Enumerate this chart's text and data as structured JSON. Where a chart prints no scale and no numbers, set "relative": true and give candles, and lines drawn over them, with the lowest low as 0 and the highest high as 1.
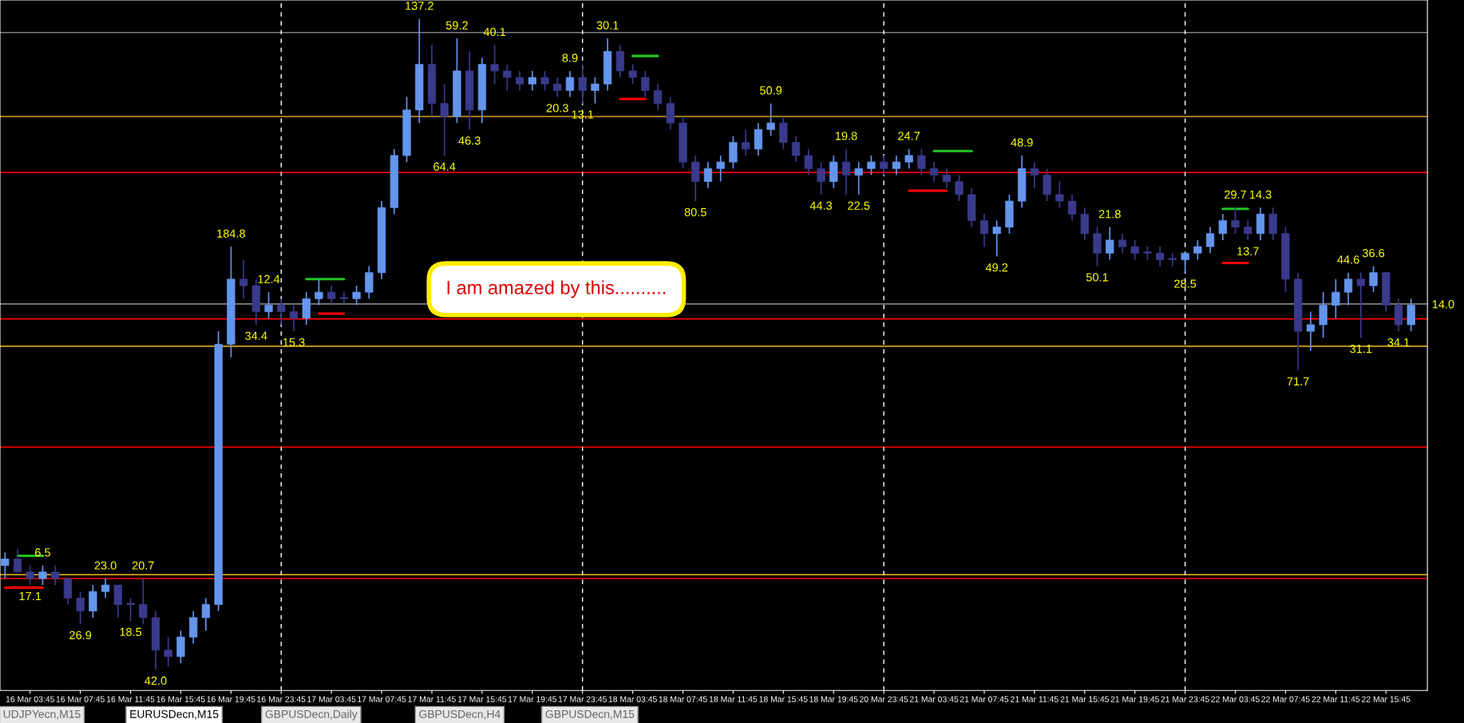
{
  "chart_data": {
    "type": "candlestick",
    "relative": true,
    "grid": false,
    "categories": [
      null,
      null,
      "16 Mar 03:45",
      null,
      null,
      null,
      "16 Mar 07:45",
      null,
      null,
      null,
      "16 Mar 11:45",
      null,
      null,
      null,
      "16 Mar 15:45",
      null,
      null,
      null,
      "16 Mar 19:45",
      null,
      null,
      null,
      "16 Mar 23:45",
      null,
      null,
      null,
      "17 Mar 03:45",
      null,
      null,
      null,
      "17 Mar 07:45",
      null,
      null,
      null,
      "17 Mar 11:45",
      null,
      null,
      null,
      "17 Mar 15:45",
      null,
      null,
      null,
      "17 Mar 19:45",
      null,
      null,
      null,
      "17 Mar 23:45",
      null,
      null,
      null,
      "18 Mar 03:45",
      null,
      null,
      null,
      "18 Mar 07:45",
      null,
      null,
      null,
      "18 Mar 11:45",
      null,
      null,
      null,
      "18 Mar 15:45",
      null,
      null,
      null,
      "18 Mar 19:45",
      null,
      null,
      null,
      "20 Mar 23:45",
      null,
      null,
      null,
      "21 Mar 03:45",
      null,
      null,
      null,
      "21 Mar 07:45",
      null,
      null,
      null,
      "21 Mar 11:45",
      null,
      null,
      null,
      "21 Mar 15:45",
      null,
      null,
      null,
      "21 Mar 19:45",
      null,
      null,
      null,
      "21 Mar 23:45",
      null,
      null,
      null,
      "22 Mar 03:45",
      null,
      null,
      null,
      "22 Mar 07:45",
      null,
      null,
      null,
      "22 Mar 11:45",
      null,
      null,
      null,
      "22 Mar 15:45",
      null,
      null
    ],
    "ohlc": [
      [
        0.16,
        0.18,
        0.14,
        0.17
      ],
      [
        0.17,
        0.185,
        0.15,
        0.15
      ],
      [
        0.15,
        0.16,
        0.13,
        0.14
      ],
      [
        0.14,
        0.16,
        0.13,
        0.15
      ],
      [
        0.15,
        0.16,
        0.13,
        0.14
      ],
      [
        0.14,
        0.14,
        0.1,
        0.11
      ],
      [
        0.11,
        0.12,
        0.07,
        0.09
      ],
      [
        0.09,
        0.13,
        0.08,
        0.12
      ],
      [
        0.12,
        0.14,
        0.11,
        0.13
      ],
      [
        0.13,
        0.13,
        0.08,
        0.1
      ],
      [
        0.1,
        0.11,
        0.075,
        0.1
      ],
      [
        0.1,
        0.14,
        0.07,
        0.08
      ],
      [
        0.08,
        0.09,
        0.0,
        0.03
      ],
      [
        0.03,
        0.05,
        0.005,
        0.02
      ],
      [
        0.02,
        0.06,
        0.01,
        0.05
      ],
      [
        0.05,
        0.09,
        0.04,
        0.08
      ],
      [
        0.08,
        0.11,
        0.06,
        0.1
      ],
      [
        0.1,
        0.52,
        0.09,
        0.5
      ],
      [
        0.5,
        0.65,
        0.48,
        0.6
      ],
      [
        0.6,
        0.63,
        0.57,
        0.59
      ],
      [
        0.59,
        0.6,
        0.53,
        0.55
      ],
      [
        0.55,
        0.58,
        0.54,
        0.56
      ],
      [
        0.56,
        0.57,
        0.53,
        0.55
      ],
      [
        0.55,
        0.56,
        0.52,
        0.54
      ],
      [
        0.54,
        0.58,
        0.53,
        0.57
      ],
      [
        0.57,
        0.6,
        0.56,
        0.58
      ],
      [
        0.58,
        0.59,
        0.56,
        0.57
      ],
      [
        0.57,
        0.58,
        0.56,
        0.57
      ],
      [
        0.57,
        0.59,
        0.56,
        0.58
      ],
      [
        0.58,
        0.62,
        0.57,
        0.61
      ],
      [
        0.61,
        0.72,
        0.6,
        0.71
      ],
      [
        0.71,
        0.8,
        0.7,
        0.79
      ],
      [
        0.79,
        0.88,
        0.78,
        0.86
      ],
      [
        0.86,
        1.0,
        0.84,
        0.93
      ],
      [
        0.93,
        0.96,
        0.85,
        0.87
      ],
      [
        0.87,
        0.9,
        0.79,
        0.85
      ],
      [
        0.85,
        0.97,
        0.84,
        0.92
      ],
      [
        0.92,
        0.95,
        0.83,
        0.86
      ],
      [
        0.86,
        0.94,
        0.84,
        0.93
      ],
      [
        0.93,
        0.96,
        0.9,
        0.92
      ],
      [
        0.92,
        0.93,
        0.89,
        0.91
      ],
      [
        0.91,
        0.92,
        0.89,
        0.9
      ],
      [
        0.9,
        0.92,
        0.89,
        0.91
      ],
      [
        0.91,
        0.92,
        0.89,
        0.9
      ],
      [
        0.9,
        0.91,
        0.88,
        0.89
      ],
      [
        0.89,
        0.92,
        0.88,
        0.91
      ],
      [
        0.91,
        0.93,
        0.87,
        0.89
      ],
      [
        0.89,
        0.91,
        0.87,
        0.9
      ],
      [
        0.9,
        0.97,
        0.89,
        0.95
      ],
      [
        0.95,
        0.96,
        0.91,
        0.92
      ],
      [
        0.92,
        0.93,
        0.9,
        0.91
      ],
      [
        0.91,
        0.92,
        0.88,
        0.89
      ],
      [
        0.89,
        0.9,
        0.86,
        0.87
      ],
      [
        0.87,
        0.88,
        0.83,
        0.84
      ],
      [
        0.84,
        0.85,
        0.77,
        0.78
      ],
      [
        0.78,
        0.79,
        0.72,
        0.75
      ],
      [
        0.75,
        0.78,
        0.74,
        0.77
      ],
      [
        0.77,
        0.79,
        0.75,
        0.78
      ],
      [
        0.78,
        0.82,
        0.77,
        0.81
      ],
      [
        0.81,
        0.83,
        0.79,
        0.8
      ],
      [
        0.8,
        0.84,
        0.79,
        0.83
      ],
      [
        0.83,
        0.87,
        0.82,
        0.84
      ],
      [
        0.84,
        0.85,
        0.8,
        0.81
      ],
      [
        0.81,
        0.82,
        0.78,
        0.79
      ],
      [
        0.79,
        0.8,
        0.76,
        0.77
      ],
      [
        0.77,
        0.78,
        0.73,
        0.75
      ],
      [
        0.75,
        0.79,
        0.74,
        0.78
      ],
      [
        0.78,
        0.8,
        0.73,
        0.76
      ],
      [
        0.76,
        0.78,
        0.73,
        0.77
      ],
      [
        0.77,
        0.79,
        0.76,
        0.78
      ],
      [
        0.78,
        0.79,
        0.76,
        0.77
      ],
      [
        0.77,
        0.79,
        0.76,
        0.78
      ],
      [
        0.78,
        0.8,
        0.77,
        0.79
      ],
      [
        0.79,
        0.8,
        0.76,
        0.77
      ],
      [
        0.77,
        0.78,
        0.75,
        0.76
      ],
      [
        0.76,
        0.77,
        0.74,
        0.75
      ],
      [
        0.75,
        0.76,
        0.72,
        0.73
      ],
      [
        0.73,
        0.74,
        0.68,
        0.69
      ],
      [
        0.69,
        0.7,
        0.65,
        0.67
      ],
      [
        0.67,
        0.69,
        0.635,
        0.68
      ],
      [
        0.68,
        0.73,
        0.67,
        0.72
      ],
      [
        0.72,
        0.79,
        0.71,
        0.77
      ],
      [
        0.77,
        0.78,
        0.74,
        0.76
      ],
      [
        0.76,
        0.77,
        0.72,
        0.73
      ],
      [
        0.73,
        0.75,
        0.71,
        0.72
      ],
      [
        0.72,
        0.73,
        0.69,
        0.7
      ],
      [
        0.7,
        0.71,
        0.66,
        0.67
      ],
      [
        0.67,
        0.68,
        0.62,
        0.64
      ],
      [
        0.64,
        0.68,
        0.63,
        0.66
      ],
      [
        0.66,
        0.67,
        0.64,
        0.65
      ],
      [
        0.65,
        0.66,
        0.63,
        0.64
      ],
      [
        0.64,
        0.65,
        0.63,
        0.64
      ],
      [
        0.64,
        0.65,
        0.62,
        0.63
      ],
      [
        0.63,
        0.64,
        0.62,
        0.63
      ],
      [
        0.63,
        0.64,
        0.61,
        0.64
      ],
      [
        0.64,
        0.66,
        0.63,
        0.65
      ],
      [
        0.65,
        0.68,
        0.64,
        0.67
      ],
      [
        0.67,
        0.7,
        0.66,
        0.69
      ],
      [
        0.69,
        0.71,
        0.67,
        0.68
      ],
      [
        0.68,
        0.69,
        0.66,
        0.67
      ],
      [
        0.67,
        0.71,
        0.66,
        0.7
      ],
      [
        0.7,
        0.71,
        0.66,
        0.67
      ],
      [
        0.67,
        0.68,
        0.58,
        0.6
      ],
      [
        0.6,
        0.61,
        0.46,
        0.52
      ],
      [
        0.52,
        0.55,
        0.49,
        0.53
      ],
      [
        0.53,
        0.58,
        0.51,
        0.56
      ],
      [
        0.56,
        0.6,
        0.54,
        0.58
      ],
      [
        0.58,
        0.61,
        0.56,
        0.6
      ],
      [
        0.6,
        0.61,
        0.51,
        0.59
      ],
      [
        0.59,
        0.62,
        0.58,
        0.61
      ],
      [
        0.61,
        0.61,
        0.55,
        0.56
      ],
      [
        0.56,
        0.57,
        0.52,
        0.53
      ],
      [
        0.53,
        0.57,
        0.52,
        0.56
      ]
    ],
    "colors": [
      "#6495ed",
      "#3a3a8c",
      "#3a3a8c",
      "#6495ed",
      "#3a3a8c",
      "#3a3a8c",
      "#3a3a8c",
      "#6495ed",
      "#6495ed",
      "#3a3a8c",
      "#3a3a8c",
      "#3a3a8c",
      "#3a3a8c",
      "#3a3a8c",
      "#6495ed",
      "#6495ed",
      "#6495ed",
      "#6495ed",
      "#6495ed",
      "#3a3a8c",
      "#3a3a8c",
      "#6495ed",
      "#3a3a8c",
      "#3a3a8c",
      "#6495ed",
      "#6495ed",
      "#3a3a8c",
      "#3a3a8c",
      "#6495ed",
      "#6495ed",
      "#6495ed",
      "#6495ed",
      "#6495ed",
      "#6495ed",
      "#3a3a8c",
      "#3a3a8c",
      "#6495ed",
      "#3a3a8c",
      "#6495ed",
      "#3a3a8c",
      "#3a3a8c",
      "#3a3a8c",
      "#6495ed",
      "#3a3a8c",
      "#3a3a8c",
      "#6495ed",
      "#3a3a8c",
      "#6495ed",
      "#6495ed",
      "#3a3a8c",
      "#3a3a8c",
      "#3a3a8c",
      "#3a3a8c",
      "#3a3a8c",
      "#3a3a8c",
      "#3a3a8c",
      "#6495ed",
      "#6495ed",
      "#6495ed",
      "#3a3a8c",
      "#6495ed",
      "#6495ed",
      "#3a3a8c",
      "#3a3a8c",
      "#3a3a8c",
      "#3a3a8c",
      "#6495ed",
      "#3a3a8c",
      "#6495ed",
      "#6495ed",
      "#3a3a8c",
      "#6495ed",
      "#6495ed",
      "#3a3a8c",
      "#3a3a8c",
      "#3a3a8c",
      "#3a3a8c",
      "#3a3a8c",
      "#3a3a8c",
      "#6495ed",
      "#6495ed",
      "#6495ed",
      "#3a3a8c",
      "#3a3a8c",
      "#3a3a8c",
      "#3a3a8c",
      "#3a3a8c",
      "#3a3a8c",
      "#6495ed",
      "#3a3a8c",
      "#3a3a8c",
      "#3a3a8c",
      "#3a3a8c",
      "#3a3a8c",
      "#6495ed",
      "#6495ed",
      "#6495ed",
      "#6495ed",
      "#3a3a8c",
      "#3a3a8c",
      "#6495ed",
      "#3a3a8c",
      "#3a3a8c",
      "#3a3a8c",
      "#6495ed",
      "#6495ed",
      "#6495ed",
      "#6495ed",
      "#3a3a8c",
      "#6495ed",
      "#3a3a8c",
      "#3a3a8c",
      "#6495ed"
    ],
    "series": [
      {
        "type": "line",
        "color": "#22c522",
        "values": [
          null,
          0.175,
          0.175,
          0.175,
          null,
          null,
          null,
          null,
          null,
          null,
          null,
          null,
          null,
          null,
          null,
          null,
          null,
          null,
          null,
          null,
          null,
          null,
          null,
          null,
          null,
          null,
          null,
          null,
          null,
          null,
          null,
          null,
          null,
          null,
          null,
          null,
          null,
          null,
          null,
          null,
          null,
          null,
          null,
          null,
          null,
          null,
          null,
          null,
          null,
          null,
          null,
          null,
          null,
          null,
          null,
          null,
          null,
          null,
          null,
          null,
          null,
          null,
          null,
          null,
          null,
          null,
          null,
          null,
          null,
          null,
          null,
          null,
          null,
          null,
          null,
          null,
          null,
          null,
          null,
          null,
          null,
          null,
          null,
          null,
          null,
          null,
          null,
          null,
          null,
          null,
          null,
          null,
          null,
          null,
          null,
          null,
          null,
          null,
          null,
          null,
          null,
          null,
          null,
          null,
          null,
          null,
          null,
          null,
          null,
          null,
          null,
          null,
          null
        ]
      },
      {
        "type": "line",
        "color": "#ff0000",
        "values": [
          0.126,
          0.126,
          0.126,
          0.126,
          null,
          null,
          null,
          null,
          null,
          null,
          null,
          null,
          null,
          null,
          null,
          null,
          null,
          null,
          null,
          null,
          null,
          null,
          null,
          null,
          null,
          null,
          null,
          null,
          null,
          null,
          null,
          null,
          null,
          null,
          null,
          null,
          null,
          null,
          null,
          null,
          null,
          null,
          null,
          null,
          null,
          null,
          null,
          null,
          null,
          null,
          null,
          null,
          null,
          null,
          null,
          null,
          null,
          null,
          null,
          null,
          null,
          null,
          null,
          null,
          null,
          null,
          null,
          null,
          null,
          null,
          null,
          null,
          null,
          null,
          null,
          null,
          null,
          null,
          null,
          null,
          null,
          null,
          null,
          null,
          null,
          null,
          null,
          null,
          null,
          null,
          null,
          null,
          null,
          null,
          null,
          null,
          null,
          null,
          null,
          null,
          null,
          null,
          null,
          null,
          null,
          null,
          null,
          null,
          null,
          null,
          null,
          null,
          null
        ]
      },
      {
        "type": "line",
        "color": "#22c522",
        "values": [
          null,
          null,
          null,
          null,
          null,
          null,
          null,
          null,
          null,
          null,
          null,
          null,
          null,
          null,
          null,
          null,
          null,
          null,
          null,
          null,
          null,
          null,
          null,
          null,
          0.6,
          0.6,
          0.6,
          0.6,
          null,
          null,
          null,
          null,
          null,
          null,
          null,
          null,
          null,
          null,
          null,
          null,
          null,
          null,
          null,
          null,
          null,
          null,
          null,
          null,
          null,
          null,
          null,
          null,
          null,
          null,
          null,
          null,
          null,
          null,
          null,
          null,
          null,
          null,
          null,
          null,
          null,
          null,
          null,
          null,
          null,
          null,
          null,
          null,
          null,
          null,
          null,
          null,
          null,
          null,
          null,
          null,
          null,
          null,
          null,
          null,
          null,
          null,
          null,
          null,
          null,
          null,
          null,
          null,
          null,
          null,
          null,
          null,
          null,
          null,
          null,
          null,
          null,
          null,
          null,
          null,
          null,
          null,
          null,
          null,
          null,
          null,
          null,
          null,
          null
        ]
      },
      {
        "type": "line",
        "color": "#ff0000",
        "values": [
          null,
          null,
          null,
          null,
          null,
          null,
          null,
          null,
          null,
          null,
          null,
          null,
          null,
          null,
          null,
          null,
          null,
          null,
          null,
          null,
          null,
          null,
          null,
          null,
          null,
          0.547,
          0.547,
          0.547,
          null,
          null,
          null,
          null,
          null,
          null,
          null,
          null,
          null,
          null,
          null,
          null,
          null,
          null,
          null,
          null,
          null,
          null,
          null,
          null,
          null,
          null,
          null,
          null,
          null,
          null,
          null,
          null,
          null,
          null,
          null,
          null,
          null,
          null,
          null,
          null,
          null,
          null,
          null,
          null,
          null,
          null,
          null,
          null,
          null,
          null,
          null,
          null,
          null,
          null,
          null,
          null,
          null,
          null,
          null,
          null,
          null,
          null,
          null,
          null,
          null,
          null,
          null,
          null,
          null,
          null,
          null,
          null,
          null,
          null,
          null,
          null,
          null,
          null,
          null,
          null,
          null,
          null,
          null,
          null,
          null,
          null,
          null,
          null,
          null
        ]
      },
      {
        "type": "line",
        "color": "#22c522",
        "values": [
          null,
          null,
          null,
          null,
          null,
          null,
          null,
          null,
          null,
          null,
          null,
          null,
          null,
          null,
          null,
          null,
          null,
          null,
          null,
          null,
          null,
          null,
          null,
          null,
          null,
          null,
          null,
          null,
          null,
          null,
          null,
          null,
          null,
          null,
          null,
          null,
          null,
          null,
          null,
          null,
          null,
          null,
          null,
          null,
          null,
          null,
          null,
          null,
          null,
          null,
          0.943,
          0.943,
          0.943,
          null,
          null,
          null,
          null,
          null,
          null,
          null,
          null,
          null,
          null,
          null,
          null,
          null,
          null,
          null,
          null,
          null,
          null,
          null,
          null,
          null,
          null,
          null,
          null,
          null,
          null,
          null,
          null,
          null,
          null,
          null,
          null,
          null,
          null,
          null,
          null,
          null,
          null,
          null,
          null,
          null,
          null,
          null,
          null,
          null,
          null,
          null,
          null,
          null,
          null,
          null,
          null,
          null,
          null,
          null,
          null,
          null,
          null,
          null,
          null
        ]
      },
      {
        "type": "line",
        "color": "#ff0000",
        "values": [
          null,
          null,
          null,
          null,
          null,
          null,
          null,
          null,
          null,
          null,
          null,
          null,
          null,
          null,
          null,
          null,
          null,
          null,
          null,
          null,
          null,
          null,
          null,
          null,
          null,
          null,
          null,
          null,
          null,
          null,
          null,
          null,
          null,
          null,
          null,
          null,
          null,
          null,
          null,
          null,
          null,
          null,
          null,
          null,
          null,
          null,
          null,
          null,
          null,
          0.877,
          0.877,
          0.877,
          null,
          null,
          null,
          null,
          null,
          null,
          null,
          null,
          null,
          null,
          null,
          null,
          null,
          null,
          null,
          null,
          null,
          null,
          null,
          null,
          null,
          null,
          null,
          null,
          null,
          null,
          null,
          null,
          null,
          null,
          null,
          null,
          null,
          null,
          null,
          null,
          null,
          null,
          null,
          null,
          null,
          null,
          null,
          null,
          null,
          null,
          null,
          null,
          null,
          null,
          null,
          null,
          null,
          null,
          null,
          null,
          null,
          null,
          null,
          null,
          null
        ]
      },
      {
        "type": "line",
        "color": "#22c522",
        "values": [
          null,
          null,
          null,
          null,
          null,
          null,
          null,
          null,
          null,
          null,
          null,
          null,
          null,
          null,
          null,
          null,
          null,
          null,
          null,
          null,
          null,
          null,
          null,
          null,
          null,
          null,
          null,
          null,
          null,
          null,
          null,
          null,
          null,
          null,
          null,
          null,
          null,
          null,
          null,
          null,
          null,
          null,
          null,
          null,
          null,
          null,
          null,
          null,
          null,
          null,
          null,
          null,
          null,
          null,
          null,
          null,
          null,
          null,
          null,
          null,
          null,
          null,
          null,
          null,
          null,
          null,
          null,
          null,
          null,
          null,
          null,
          null,
          null,
          null,
          0.797,
          0.797,
          0.797,
          0.797,
          null,
          null,
          null,
          null,
          null,
          null,
          null,
          null,
          null,
          null,
          null,
          null,
          null,
          null,
          null,
          null,
          null,
          null,
          null,
          null,
          null,
          null,
          null,
          null,
          null,
          null,
          null,
          null,
          null,
          null,
          null,
          null,
          null,
          null,
          null
        ]
      },
      {
        "type": "line",
        "color": "#ff0000",
        "values": [
          null,
          null,
          null,
          null,
          null,
          null,
          null,
          null,
          null,
          null,
          null,
          null,
          null,
          null,
          null,
          null,
          null,
          null,
          null,
          null,
          null,
          null,
          null,
          null,
          null,
          null,
          null,
          null,
          null,
          null,
          null,
          null,
          null,
          null,
          null,
          null,
          null,
          null,
          null,
          null,
          null,
          null,
          null,
          null,
          null,
          null,
          null,
          null,
          null,
          null,
          null,
          null,
          null,
          null,
          null,
          null,
          null,
          null,
          null,
          null,
          null,
          null,
          null,
          null,
          null,
          null,
          null,
          null,
          null,
          null,
          null,
          null,
          0.736,
          0.736,
          0.736,
          0.736,
          null,
          null,
          null,
          null,
          null,
          null,
          null,
          null,
          null,
          null,
          null,
          null,
          null,
          null,
          null,
          null,
          null,
          null,
          null,
          null,
          null,
          null,
          null,
          null,
          null,
          null,
          null,
          null,
          null,
          null,
          null,
          null,
          null,
          null,
          null,
          null,
          null
        ]
      },
      {
        "type": "line",
        "color": "#22c522",
        "values": [
          null,
          null,
          null,
          null,
          null,
          null,
          null,
          null,
          null,
          null,
          null,
          null,
          null,
          null,
          null,
          null,
          null,
          null,
          null,
          null,
          null,
          null,
          null,
          null,
          null,
          null,
          null,
          null,
          null,
          null,
          null,
          null,
          null,
          null,
          null,
          null,
          null,
          null,
          null,
          null,
          null,
          null,
          null,
          null,
          null,
          null,
          null,
          null,
          null,
          null,
          null,
          null,
          null,
          null,
          null,
          null,
          null,
          null,
          null,
          null,
          null,
          null,
          null,
          null,
          null,
          null,
          null,
          null,
          null,
          null,
          null,
          null,
          null,
          null,
          null,
          null,
          null,
          null,
          null,
          null,
          null,
          null,
          null,
          null,
          null,
          null,
          null,
          null,
          null,
          null,
          null,
          null,
          null,
          null,
          null,
          null,
          null,
          0.708,
          0.708,
          0.708,
          null,
          null,
          null,
          null,
          null,
          null,
          null,
          null,
          null,
          null,
          null,
          null,
          null
        ]
      },
      {
        "type": "line",
        "color": "#ff0000",
        "values": [
          null,
          null,
          null,
          null,
          null,
          null,
          null,
          null,
          null,
          null,
          null,
          null,
          null,
          null,
          null,
          null,
          null,
          null,
          null,
          null,
          null,
          null,
          null,
          null,
          null,
          null,
          null,
          null,
          null,
          null,
          null,
          null,
          null,
          null,
          null,
          null,
          null,
          null,
          null,
          null,
          null,
          null,
          null,
          null,
          null,
          null,
          null,
          null,
          null,
          null,
          null,
          null,
          null,
          null,
          null,
          null,
          null,
          null,
          null,
          null,
          null,
          null,
          null,
          null,
          null,
          null,
          null,
          null,
          null,
          null,
          null,
          null,
          null,
          null,
          null,
          null,
          null,
          null,
          null,
          null,
          null,
          null,
          null,
          null,
          null,
          null,
          null,
          null,
          null,
          null,
          null,
          null,
          null,
          null,
          null,
          null,
          null,
          0.625,
          0.625,
          0.625,
          null,
          null,
          null,
          null,
          null,
          null,
          null,
          null,
          null,
          null,
          null,
          null,
          null
        ]
      }
    ],
    "ref_lines": [
      {
        "axis": "y",
        "value": 0.979,
        "color": "#808080"
      },
      {
        "axis": "y",
        "value": 0.562,
        "color": "#808080"
      },
      {
        "axis": "y",
        "value": 0.85,
        "color": "#d4a017"
      },
      {
        "axis": "y",
        "value": 0.497,
        "color": "#d4a017"
      },
      {
        "axis": "y",
        "value": 0.146,
        "color": "#d4a017"
      },
      {
        "axis": "y",
        "value": 0.764,
        "color": "#ff0000"
      },
      {
        "axis": "y",
        "value": 0.539,
        "color": "#ff0000"
      },
      {
        "axis": "y",
        "value": 0.342,
        "color": "#ff0000"
      },
      {
        "axis": "y",
        "value": 0.14,
        "color": "#ff0000"
      },
      {
        "axis": "x",
        "value": "16 Mar 23:45",
        "color": "#ffffff",
        "line_style": "dashed"
      },
      {
        "axis": "x",
        "value": "17 Mar 23:45",
        "color": "#ffffff",
        "line_style": "dashed"
      },
      {
        "axis": "x",
        "value": "20 Mar 23:45",
        "color": "#ffffff",
        "line_style": "dashed"
      },
      {
        "axis": "x",
        "value": "21 Mar 23:45",
        "color": "#ffffff",
        "line_style": "dashed"
      }
    ],
    "annotations": [
      "I am amazed by this..........",
      "UDJPYecn,M15",
      "EURUSDecn,M15",
      "GBPUSDecn,Daily",
      "GBPUSDecn,H4",
      "GBPUSDecn,M15",
      {
        "text": "17.1",
        "y": 0.13
      },
      {
        "text": "6.5",
        "y": 0.16
      },
      {
        "text": "26.9",
        "y": 0.07
      },
      {
        "text": "23.0",
        "y": 0.14
      },
      {
        "text": "18.5",
        "y": 0.075
      },
      {
        "text": "20.7",
        "y": 0.14
      },
      {
        "text": "42.0",
        "y": 0.0
      },
      {
        "text": "184.8",
        "y": 0.65
      },
      {
        "text": "34.4",
        "y": 0.53
      },
      {
        "text": "12.4",
        "y": 0.58
      },
      {
        "text": "15.3",
        "y": 0.52
      },
      {
        "text": "137.2",
        "y": 1.0
      },
      {
        "text": "64.4",
        "y": 0.79
      },
      {
        "text": "59.2",
        "y": 0.97
      },
      {
        "text": "46.3",
        "y": 0.83
      },
      {
        "text": "40.1",
        "y": 0.96
      },
      {
        "text": "20.3",
        "y": 0.88
      },
      {
        "text": "8.9",
        "y": 0.92
      },
      {
        "text": "13.1",
        "y": 0.87
      },
      {
        "text": "30.1",
        "y": 0.97
      },
      {
        "text": "80.5",
        "y": 0.72
      },
      {
        "text": "50.9",
        "y": 0.87
      },
      {
        "text": "44.3",
        "y": 0.73
      },
      {
        "text": "19.8",
        "y": 0.8
      },
      {
        "text": "22.5",
        "y": 0.73
      },
      {
        "text": "24.7",
        "y": 0.8
      },
      {
        "text": "49.2",
        "y": 0.635
      },
      {
        "text": "48.9",
        "y": 0.79
      },
      {
        "text": "50.1",
        "y": 0.62
      },
      {
        "text": "21.8",
        "y": 0.68
      },
      {
        "text": "28.5",
        "y": 0.61
      },
      {
        "text": "29.7",
        "y": 0.71
      },
      {
        "text": "13.7",
        "y": 0.66
      },
      {
        "text": "14.3",
        "y": 0.71
      },
      {
        "text": "71.7",
        "y": 0.46
      },
      {
        "text": "44.6",
        "y": 0.61
      },
      {
        "text": "31.1",
        "y": 0.51
      },
      {
        "text": "36.6",
        "y": 0.62
      },
      {
        "text": "34.1",
        "y": 0.52
      },
      "14.0"
    ]
  }
}
